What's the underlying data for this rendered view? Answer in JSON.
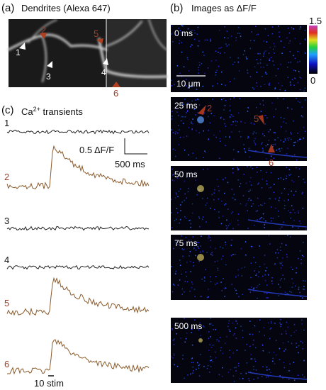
{
  "panels": [
    {
      "label": "(a)",
      "title": "Dendrites (Alexa 647)",
      "markers": [
        "1",
        "2",
        "3",
        "4",
        "5",
        "6"
      ]
    },
    {
      "label": "(b)",
      "title": "Images as ΔF/F",
      "colorbar": {
        "max": "1.5",
        "min": "0"
      },
      "scale_bar": "10 μm",
      "frames": [
        "0 ms",
        "25 ms",
        "50 ms",
        "75 ms",
        "500 ms"
      ],
      "arrow_labels": [
        "2",
        "5",
        "6"
      ]
    },
    {
      "label": "(c)",
      "title": "Ca",
      "title_sup": "2+",
      "title_rest": " transients",
      "traces": [
        "1",
        "2",
        "3",
        "4",
        "5",
        "6"
      ],
      "scale_y": "0.5 ΔF/F",
      "scale_x": "500 ms",
      "stimulus": "10 stim"
    }
  ]
}
